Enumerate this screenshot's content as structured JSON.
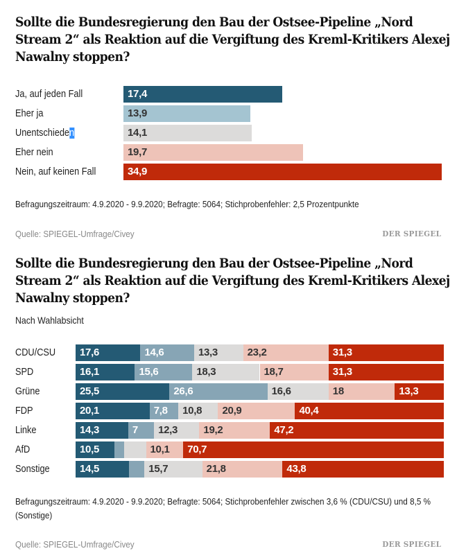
{
  "colors": {
    "ja_sicher": "#245a74",
    "eher_ja_single": "#a4c4d1",
    "eher_ja_stacked": "#87a5b5",
    "unentschieden": "#dcdbda",
    "eher_nein": "#eec3b8",
    "nein_sicher": "#c02a0a",
    "text_light": "#ffffff",
    "text_dark": "#333333"
  },
  "chart_data": [
    {
      "type": "bar",
      "orientation": "horizontal",
      "title": "Sollte die Bundesregierung den Bau der Ostsee-Pipeline „Nord Stream 2“ als Reaktion auf die Vergiftung des Kreml-Kritikers Alexej Nawalny stoppen?",
      "categories": [
        "Ja, auf jeden Fall",
        "Eher ja",
        "Unentschieden",
        "Eher nein",
        "Nein, auf keinen Fall"
      ],
      "values": [
        17.4,
        13.9,
        14.1,
        19.7,
        34.9
      ],
      "value_labels": [
        "17,4",
        "13,9",
        "14,1",
        "19,7",
        "34,9"
      ],
      "unit": "%",
      "xlim": [
        0,
        34.9
      ],
      "grid": false,
      "note": "Befragungszeitraum: 4.9.2020 - 9.9.2020; Befragte: 5064; Stichprobenfehler: 2,5 Prozentpunkte",
      "source": "Quelle: SPIEGEL-Umfrage/Civey",
      "brand": "DER SPIEGEL"
    },
    {
      "type": "bar",
      "orientation": "horizontal",
      "stacked": true,
      "title": "Sollte die Bundesregierung den Bau der Ostsee-Pipeline „Nord Stream 2“ als Reaktion auf die Vergiftung des Kreml-Kritikers Alexej Nawalny stoppen?",
      "subtitle": "Nach Wahlabsicht",
      "categories": [
        "CDU/CSU",
        "SPD",
        "Grüne",
        "FDP",
        "Linke",
        "AfD",
        "Sonstige"
      ],
      "series": [
        {
          "name": "Ja, auf jeden Fall",
          "values": [
            17.6,
            16.1,
            25.5,
            20.1,
            14.3,
            10.5,
            14.5
          ],
          "labels": [
            "17,6",
            "16,1",
            "25,5",
            "20,1",
            "14,3",
            "10,5",
            "14,5"
          ]
        },
        {
          "name": "Eher ja",
          "values": [
            14.6,
            15.6,
            26.6,
            7.8,
            7.0,
            2.6,
            4.2
          ],
          "labels": [
            "14,6",
            "15,6",
            "26,6",
            "7,8",
            "7",
            "",
            ""
          ]
        },
        {
          "name": "Unentschieden",
          "values": [
            13.3,
            18.3,
            16.6,
            10.8,
            12.3,
            6.0,
            15.7
          ],
          "labels": [
            "13,3",
            "18,3",
            "16,6",
            "10,8",
            "12,3",
            "",
            "15,7"
          ]
        },
        {
          "name": "Eher nein",
          "values": [
            23.2,
            18.7,
            18.0,
            20.9,
            19.2,
            10.1,
            21.8
          ],
          "labels": [
            "23,2",
            "18,7",
            "18",
            "20,9",
            "19,2",
            "10,1",
            "21,8"
          ]
        },
        {
          "name": "Nein, auf keinen Fall",
          "values": [
            31.3,
            31.3,
            13.3,
            40.4,
            47.2,
            70.7,
            43.8
          ],
          "labels": [
            "31,3",
            "31,3",
            "13,3",
            "40,4",
            "47,2",
            "70,7",
            "43,8"
          ]
        }
      ],
      "unit": "%",
      "xlim": [
        0,
        100
      ],
      "grid": false,
      "note": "Befragungszeitraum: 4.9.2020 - 9.9.2020; Befragte: 5064; Stichprobenfehler zwischen 3,6 % (CDU/CSU) und 8,5 % (Sonstige)",
      "source": "Quelle: SPIEGEL-Umfrage/Civey",
      "brand": "DER SPIEGEL"
    }
  ],
  "selection": {
    "label_main": "Unentschiede",
    "label_selected": "n"
  }
}
